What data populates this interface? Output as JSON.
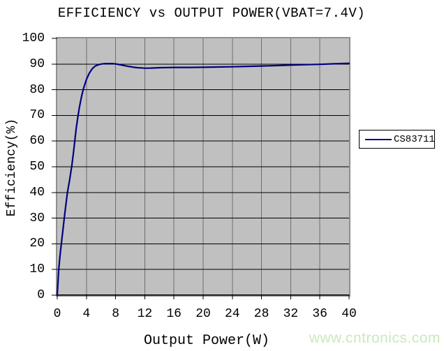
{
  "title": "EFFICIENCY vs OUTPUT POWER(VBAT=7.4V)",
  "watermark": "www.cntronics.com",
  "colors": {
    "plot_background": "#c0c0c0",
    "plot_border": "#8f8f8f",
    "h_gridline": "#000000",
    "v_gridline": "#6e6e6e",
    "axis_line": "#000000",
    "series": "#000080",
    "watermark": "#c9eabc"
  },
  "chart_data": {
    "type": "line",
    "title": "EFFICIENCY vs OUTPUT POWER(VBAT=7.4V)",
    "xlabel": "Output Power(W)",
    "ylabel": "Efficiency(%)",
    "xlim": [
      0,
      40
    ],
    "ylim": [
      0,
      100
    ],
    "x_ticks": [
      0,
      4,
      8,
      12,
      16,
      20,
      24,
      28,
      32,
      36,
      40
    ],
    "y_ticks": [
      0,
      10,
      20,
      30,
      40,
      50,
      60,
      70,
      80,
      90,
      100
    ],
    "grid": true,
    "legend": {
      "position": "right",
      "entries": [
        "CS83711"
      ]
    },
    "series": [
      {
        "name": "CS83711",
        "color": "#000080",
        "points": [
          [
            0,
            0
          ],
          [
            0.2,
            10
          ],
          [
            0.4,
            16
          ],
          [
            0.6,
            21
          ],
          [
            0.8,
            26
          ],
          [
            1.0,
            31
          ],
          [
            1.2,
            35.5
          ],
          [
            1.4,
            40
          ],
          [
            1.7,
            45
          ],
          [
            2.0,
            50.5
          ],
          [
            2.2,
            55
          ],
          [
            2.4,
            60
          ],
          [
            2.6,
            65
          ],
          [
            2.8,
            69
          ],
          [
            3.0,
            72.5
          ],
          [
            3.3,
            77
          ],
          [
            3.6,
            80.5
          ],
          [
            4.0,
            84
          ],
          [
            4.4,
            86.5
          ],
          [
            4.8,
            88.2
          ],
          [
            5.2,
            89.2
          ],
          [
            5.6,
            89.7
          ],
          [
            6.0,
            90.0
          ],
          [
            6.5,
            90.15
          ],
          [
            7.0,
            90.2
          ],
          [
            7.5,
            90.2
          ],
          [
            8.0,
            90.05
          ],
          [
            8.5,
            89.8
          ],
          [
            9.0,
            89.5
          ],
          [
            9.5,
            89.2
          ],
          [
            10,
            89.0
          ],
          [
            10.5,
            88.75
          ],
          [
            11,
            88.6
          ],
          [
            11.5,
            88.5
          ],
          [
            12,
            88.4
          ],
          [
            12.5,
            88.4
          ],
          [
            13,
            88.45
          ],
          [
            14,
            88.6
          ],
          [
            15,
            88.65
          ],
          [
            16,
            88.7
          ],
          [
            18,
            88.7
          ],
          [
            20,
            88.75
          ],
          [
            22,
            88.85
          ],
          [
            24,
            88.95
          ],
          [
            26,
            89.1
          ],
          [
            28,
            89.25
          ],
          [
            30,
            89.4
          ],
          [
            32,
            89.6
          ],
          [
            34,
            89.75
          ],
          [
            36,
            89.9
          ],
          [
            38,
            90.1
          ],
          [
            40,
            90.3
          ]
        ]
      }
    ]
  }
}
